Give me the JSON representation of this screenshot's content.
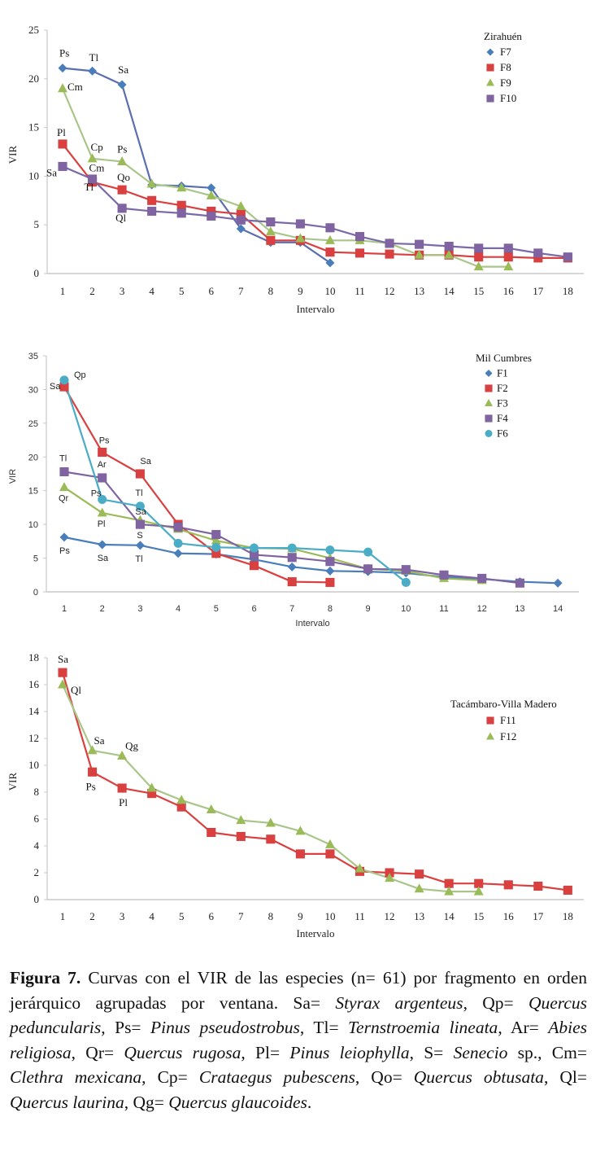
{
  "chart_data": [
    {
      "type": "line",
      "title": "",
      "legend_title": "Zirahuén",
      "legend_position": "top-right",
      "xlabel": "Intervalo",
      "ylabel": "VIR",
      "ylim": [
        0,
        25
      ],
      "yticks": [
        0,
        5,
        10,
        15,
        20,
        25
      ],
      "x": [
        1,
        2,
        3,
        4,
        5,
        6,
        7,
        8,
        9,
        10,
        11,
        12,
        13,
        14,
        15,
        16,
        17,
        18
      ],
      "grid": false,
      "series": [
        {
          "name": "F7",
          "marker": "diamond",
          "color": "#4a7ebb",
          "line_color": "#5b6fb0",
          "values": [
            21.1,
            20.8,
            19.4,
            9.1,
            9.0,
            8.8,
            4.6,
            3.2,
            3.2,
            1.1
          ]
        },
        {
          "name": "F8",
          "marker": "square",
          "color": "#d9403f",
          "line_color": "#d9403f",
          "values": [
            13.3,
            9.4,
            8.6,
            7.5,
            7.0,
            6.4,
            6.1,
            3.4,
            3.4,
            2.2,
            2.1,
            2.0,
            1.9,
            1.9,
            1.7,
            1.7,
            1.6,
            1.6
          ]
        },
        {
          "name": "F9",
          "marker": "triangle",
          "color": "#9bbb59",
          "line_color": "#a9c68a",
          "values": [
            19.0,
            11.8,
            11.5,
            9.2,
            8.8,
            8.0,
            6.9,
            4.3,
            3.6,
            3.4,
            3.4,
            3.1,
            1.9,
            1.9,
            0.7,
            0.7
          ]
        },
        {
          "name": "F10",
          "marker": "square",
          "color": "#8064a2",
          "line_color": "#7b6aa8",
          "values": [
            11.0,
            9.7,
            6.7,
            6.4,
            6.2,
            5.9,
            5.5,
            5.3,
            5.1,
            4.7,
            3.8,
            3.1,
            3.0,
            2.8,
            2.6,
            2.6,
            2.1,
            1.7
          ]
        }
      ],
      "annotations": [
        {
          "text": "Ps",
          "series": "F7",
          "x": 1
        },
        {
          "text": "Tl",
          "series": "F7",
          "x": 2
        },
        {
          "text": "Sa",
          "series": "F7",
          "x": 3
        },
        {
          "text": "Cm",
          "series": "F9",
          "x": 1
        },
        {
          "text": "Pl",
          "series": "F8",
          "x": 1
        },
        {
          "text": "Cp",
          "series": "F9",
          "x": 2
        },
        {
          "text": "Ps",
          "series": "F9",
          "x": 3
        },
        {
          "text": "Sa",
          "series": "F10",
          "x": 1
        },
        {
          "text": "Cm",
          "series": "F8",
          "x": 2
        },
        {
          "text": "Tl",
          "series": "F10",
          "x": 2
        },
        {
          "text": "Qo",
          "series": "F8",
          "x": 3
        },
        {
          "text": "Ql",
          "series": "F10",
          "x": 3
        }
      ]
    },
    {
      "type": "line",
      "title": "",
      "legend_title": "Mil Cumbres",
      "legend_position": "top-right",
      "xlabel": "Intervalo",
      "ylabel": "VIR",
      "ylim": [
        0,
        35
      ],
      "yticks": [
        0,
        5,
        10,
        15,
        20,
        25,
        30,
        35
      ],
      "x": [
        1,
        2,
        3,
        4,
        5,
        6,
        7,
        8,
        9,
        10,
        11,
        12,
        13,
        14
      ],
      "grid": false,
      "series": [
        {
          "name": "F1",
          "marker": "diamond",
          "color": "#4a7ebb",
          "line_color": "#4a7ebb",
          "values": [
            8.1,
            7.0,
            6.9,
            5.7,
            5.6,
            4.8,
            3.7,
            3.1,
            3.0,
            2.8,
            2.2,
            1.9,
            1.5,
            1.3
          ]
        },
        {
          "name": "F2",
          "marker": "square",
          "color": "#d9403f",
          "line_color": "#d9403f",
          "values": [
            30.4,
            20.7,
            17.5,
            10.0,
            5.7,
            3.9,
            1.5,
            1.4
          ]
        },
        {
          "name": "F3",
          "marker": "triangle",
          "color": "#9bbb59",
          "line_color": "#9bbb59",
          "values": [
            15.5,
            11.7,
            10.6,
            9.3,
            7.6,
            6.5,
            6.4,
            5.0,
            3.4,
            3.1,
            2.0,
            1.7
          ]
        },
        {
          "name": "F4",
          "marker": "square",
          "color": "#8064a2",
          "line_color": "#8064a2",
          "values": [
            17.8,
            16.9,
            10.0,
            9.6,
            8.5,
            5.5,
            5.1,
            4.5,
            3.4,
            3.3,
            2.5,
            2.0,
            1.3
          ]
        },
        {
          "name": "F6",
          "marker": "circle",
          "color": "#4bacc6",
          "line_color": "#4bacc6",
          "values": [
            31.4,
            13.7,
            12.7,
            7.2,
            6.6,
            6.5,
            6.5,
            6.2,
            5.9,
            1.4
          ]
        }
      ],
      "annotations": [
        {
          "text": "Sa",
          "series": "F2",
          "x": 1
        },
        {
          "text": "Qp",
          "series": "F6",
          "x": 1
        },
        {
          "text": "Ps",
          "series": "F2",
          "x": 2
        },
        {
          "text": "Sa",
          "series": "F2",
          "x": 3
        },
        {
          "text": "Tl",
          "series": "F4",
          "x": 1
        },
        {
          "text": "Ar",
          "series": "F4",
          "x": 2
        },
        {
          "text": "Qr",
          "series": "F3",
          "x": 1
        },
        {
          "text": "Ps",
          "series": "F6",
          "x": 2
        },
        {
          "text": "Tl",
          "series": "F6",
          "x": 3
        },
        {
          "text": "Sa",
          "series": "F6",
          "x": 3
        },
        {
          "text": "Pl",
          "series": "F3",
          "x": 2
        },
        {
          "text": "S",
          "series": "F4",
          "x": 3
        },
        {
          "text": "Ps",
          "series": "F1",
          "x": 1
        },
        {
          "text": "Sa",
          "series": "F1",
          "x": 2
        },
        {
          "text": "Tl",
          "series": "F1",
          "x": 3
        }
      ]
    },
    {
      "type": "line",
      "title": "",
      "legend_title": "Tacámbaro-Villa Madero",
      "legend_position": "right",
      "xlabel": "Intervalo",
      "ylabel": "VIR",
      "ylim": [
        0,
        18
      ],
      "yticks": [
        0,
        2,
        4,
        6,
        8,
        10,
        12,
        14,
        16,
        18
      ],
      "x": [
        1,
        2,
        3,
        4,
        5,
        6,
        7,
        8,
        9,
        10,
        11,
        12,
        13,
        14,
        15,
        16,
        17,
        18
      ],
      "grid": false,
      "series": [
        {
          "name": "F11",
          "marker": "square",
          "color": "#d9403f",
          "line_color": "#d9403f",
          "values": [
            16.9,
            9.5,
            8.3,
            7.9,
            6.9,
            5.0,
            4.7,
            4.5,
            3.4,
            3.4,
            2.1,
            2.0,
            1.9,
            1.2,
            1.2,
            1.1,
            1.0,
            0.7
          ]
        },
        {
          "name": "F12",
          "marker": "triangle",
          "color": "#9bbb59",
          "line_color": "#a9c68a",
          "values": [
            16.0,
            11.1,
            10.7,
            8.3,
            7.4,
            6.7,
            5.9,
            5.7,
            5.1,
            4.1,
            2.3,
            1.6,
            0.8,
            0.6,
            0.6
          ]
        }
      ],
      "annotations": [
        {
          "text": "Sa",
          "series": "F11",
          "x": 1
        },
        {
          "text": "Ql",
          "series": "F12",
          "x": 1
        },
        {
          "text": "Sa",
          "series": "F12",
          "x": 2
        },
        {
          "text": "Qg",
          "series": "F12",
          "x": 3
        },
        {
          "text": "Ps",
          "series": "F11",
          "x": 2
        },
        {
          "text": "Pl",
          "series": "F11",
          "x": 3
        }
      ]
    }
  ],
  "caption": {
    "label": "Figura 7.",
    "parts": [
      {
        "t": " Curvas con el VIR de las especies (n= 61) por fragmento en orden jerárquico agrupadas por ventana. Sa= ",
        "i": false
      },
      {
        "t": "Styrax argenteus",
        "i": true
      },
      {
        "t": ", Qp= ",
        "i": false
      },
      {
        "t": "Quercus peduncularis",
        "i": true
      },
      {
        "t": ", Ps= ",
        "i": false
      },
      {
        "t": "Pinus pseudostrobus",
        "i": true
      },
      {
        "t": ", Tl= ",
        "i": false
      },
      {
        "t": "Ternstroemia lineata",
        "i": true
      },
      {
        "t": ", Ar= ",
        "i": false
      },
      {
        "t": "Abies religiosa",
        "i": true
      },
      {
        "t": ", Qr= ",
        "i": false
      },
      {
        "t": "Quercus rugosa",
        "i": true
      },
      {
        "t": ", Pl= ",
        "i": false
      },
      {
        "t": "Pinus leiophylla",
        "i": true
      },
      {
        "t": ", S= ",
        "i": false
      },
      {
        "t": "Senecio",
        "i": true
      },
      {
        "t": " sp., Cm= ",
        "i": false
      },
      {
        "t": "Clethra mexicana",
        "i": true
      },
      {
        "t": ", Cp= ",
        "i": false
      },
      {
        "t": "Crataegus pubescens",
        "i": true
      },
      {
        "t": ", Qo= ",
        "i": false
      },
      {
        "t": "Quercus obtusata",
        "i": true
      },
      {
        "t": ", Ql= ",
        "i": false
      },
      {
        "t": "Quercus laurina",
        "i": true
      },
      {
        "t": ", Qg= ",
        "i": false
      },
      {
        "t": "Quercus glaucoides",
        "i": true
      },
      {
        "t": ".",
        "i": false
      }
    ]
  }
}
